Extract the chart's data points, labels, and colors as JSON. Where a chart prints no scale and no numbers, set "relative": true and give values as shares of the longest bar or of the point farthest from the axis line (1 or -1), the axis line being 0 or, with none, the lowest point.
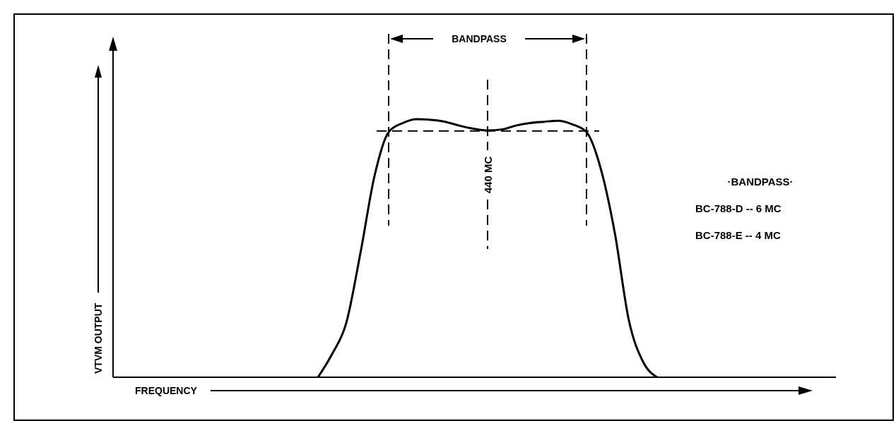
{
  "chart_data": {
    "type": "line",
    "relative": true,
    "xlabel": "FREQUENCY",
    "ylabel": "VTVM OUTPUT",
    "line_style": "solid",
    "categories": [
      null,
      null,
      null,
      null,
      null,
      null,
      null,
      null,
      null,
      null,
      null,
      null,
      null,
      null,
      null,
      null,
      null,
      null,
      null,
      null,
      null,
      null,
      null,
      null,
      null,
      null,
      null,
      null,
      null,
      null,
      null,
      null,
      null,
      null,
      null,
      null,
      null,
      null,
      null,
      null,
      null,
      null,
      null,
      null,
      null,
      null,
      null,
      null,
      null
    ],
    "series": [
      {
        "color": "#000000",
        "values": [
          null,
          null,
          null,
          null,
          null,
          null,
          null,
          null,
          null,
          null,
          null,
          null,
          null,
          null,
          0,
          0.09,
          0.21,
          0.48,
          0.78,
          0.95,
          0.985,
          1,
          0.997,
          0.99,
          0.975,
          0.963,
          0.956,
          0.96,
          0.975,
          0.985,
          0.99,
          0.994,
          0.98,
          0.95,
          0.81,
          0.56,
          0.22,
          0.06,
          0,
          null,
          null,
          null,
          null,
          null,
          null,
          null,
          null,
          null,
          null
        ]
      }
    ],
    "ref_lines": [
      {
        "axis": "y",
        "value": 0.954,
        "line_style": "dashed",
        "color": "#000000"
      }
    ],
    "annotations": [
      "BANDPASS",
      "440 MC",
      "·BANDPASS·",
      "BC-788-D -- 6 MC",
      "BC-788-E -- 4 MC"
    ]
  }
}
